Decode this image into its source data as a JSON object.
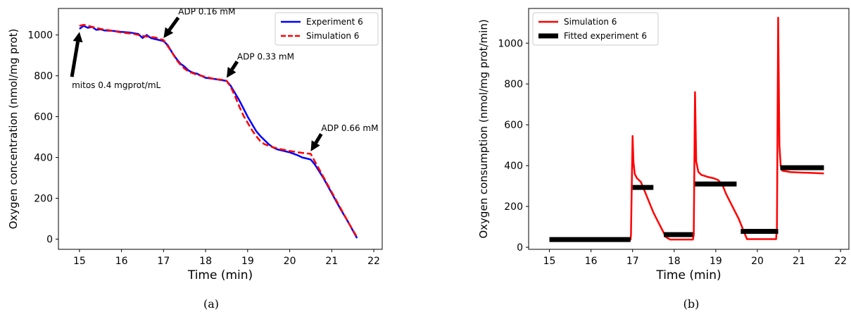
{
  "chart_data": [
    {
      "type": "line",
      "caption": "(a)",
      "xlabel": "Time (min)",
      "ylabel": "Oxygen concentration (nmol/mg prot)",
      "xlim": [
        14.5,
        22.2
      ],
      "ylim": [
        -50,
        1130
      ],
      "xticks": [
        15,
        16,
        17,
        18,
        19,
        20,
        21,
        22
      ],
      "yticks": [
        0,
        200,
        400,
        600,
        800,
        1000
      ],
      "legend_position": "top-right",
      "series": [
        {
          "name": "Experiment 6",
          "color": "#0000ff",
          "style": "solid",
          "points": [
            [
              15.0,
              1030
            ],
            [
              15.1,
              1045
            ],
            [
              15.2,
              1035
            ],
            [
              15.3,
              1040
            ],
            [
              15.4,
              1025
            ],
            [
              15.5,
              1028
            ],
            [
              15.6,
              1022
            ],
            [
              15.8,
              1020
            ],
            [
              16.0,
              1015
            ],
            [
              16.2,
              1012
            ],
            [
              16.4,
              1005
            ],
            [
              16.5,
              985
            ],
            [
              16.6,
              1000
            ],
            [
              16.7,
              985
            ],
            [
              16.8,
              980
            ],
            [
              16.9,
              975
            ],
            [
              17.0,
              970
            ],
            [
              17.1,
              950
            ],
            [
              17.2,
              915
            ],
            [
              17.3,
              885
            ],
            [
              17.4,
              860
            ],
            [
              17.5,
              845
            ],
            [
              17.6,
              825
            ],
            [
              17.7,
              815
            ],
            [
              17.8,
              810
            ],
            [
              18.0,
              790
            ],
            [
              18.2,
              785
            ],
            [
              18.4,
              778
            ],
            [
              18.5,
              775
            ],
            [
              18.6,
              750
            ],
            [
              18.7,
              715
            ],
            [
              18.8,
              680
            ],
            [
              18.9,
              640
            ],
            [
              19.0,
              600
            ],
            [
              19.1,
              565
            ],
            [
              19.2,
              530
            ],
            [
              19.3,
              505
            ],
            [
              19.4,
              485
            ],
            [
              19.5,
              465
            ],
            [
              19.6,
              450
            ],
            [
              19.7,
              440
            ],
            [
              19.8,
              435
            ],
            [
              19.9,
              430
            ],
            [
              20.0,
              425
            ],
            [
              20.2,
              410
            ],
            [
              20.3,
              400
            ],
            [
              20.4,
              395
            ],
            [
              20.5,
              390
            ],
            [
              20.6,
              365
            ],
            [
              20.8,
              300
            ],
            [
              21.0,
              225
            ],
            [
              21.2,
              150
            ],
            [
              21.4,
              80
            ],
            [
              21.6,
              5
            ]
          ]
        },
        {
          "name": "Simulation 6",
          "color": "#ff0000",
          "style": "dashed",
          "points": [
            [
              15.0,
              1045
            ],
            [
              15.1,
              1050
            ],
            [
              15.3,
              1040
            ],
            [
              15.5,
              1030
            ],
            [
              15.8,
              1020
            ],
            [
              16.0,
              1012
            ],
            [
              16.3,
              1005
            ],
            [
              16.5,
              995
            ],
            [
              16.8,
              988
            ],
            [
              17.0,
              975
            ],
            [
              17.1,
              945
            ],
            [
              17.2,
              915
            ],
            [
              17.3,
              880
            ],
            [
              17.4,
              855
            ],
            [
              17.5,
              835
            ],
            [
              17.6,
              820
            ],
            [
              17.8,
              805
            ],
            [
              18.0,
              795
            ],
            [
              18.2,
              785
            ],
            [
              18.4,
              780
            ],
            [
              18.5,
              775
            ],
            [
              18.6,
              745
            ],
            [
              18.7,
              700
            ],
            [
              18.8,
              650
            ],
            [
              18.9,
              605
            ],
            [
              19.0,
              570
            ],
            [
              19.1,
              535
            ],
            [
              19.2,
              505
            ],
            [
              19.3,
              480
            ],
            [
              19.4,
              465
            ],
            [
              19.6,
              450
            ],
            [
              19.8,
              440
            ],
            [
              20.0,
              432
            ],
            [
              20.2,
              425
            ],
            [
              20.4,
              420
            ],
            [
              20.5,
              418
            ],
            [
              20.6,
              380
            ],
            [
              20.8,
              305
            ],
            [
              21.0,
              230
            ],
            [
              21.2,
              155
            ],
            [
              21.4,
              80
            ],
            [
              21.6,
              10
            ]
          ]
        }
      ],
      "annotations": [
        {
          "text": "mitos 0.4 mgprot/mL",
          "x": 14.82,
          "y": 740,
          "arrow_from": [
            14.82,
            795
          ],
          "arrow_to": [
            15.0,
            1015
          ]
        },
        {
          "text": "ADP 0.16 mM",
          "x": 17.35,
          "y": 1100,
          "arrow_from": [
            17.35,
            1085
          ],
          "arrow_to": [
            17.0,
            985
          ]
        },
        {
          "text": "ADP 0.33 mM",
          "x": 18.75,
          "y": 880,
          "arrow_from": [
            18.75,
            870
          ],
          "arrow_to": [
            18.5,
            790
          ]
        },
        {
          "text": "ADP 0.66 mM",
          "x": 20.75,
          "y": 530,
          "arrow_from": [
            20.75,
            515
          ],
          "arrow_to": [
            20.5,
            430
          ]
        }
      ]
    },
    {
      "type": "line",
      "caption": "(b)",
      "xlabel": "Time (min)",
      "ylabel": "Oxygen consumption (nmol/mg prot/min)",
      "xlim": [
        14.5,
        22.2
      ],
      "ylim": [
        -10,
        1170
      ],
      "xticks": [
        15,
        16,
        17,
        18,
        19,
        20,
        21,
        22
      ],
      "yticks": [
        0,
        200,
        400,
        600,
        800,
        1000
      ],
      "legend_position": "top-left",
      "series": [
        {
          "name": "Simulation 6",
          "color": "#ff0000",
          "style": "solid",
          "points": [
            [
              15.0,
              38
            ],
            [
              16.95,
              38
            ],
            [
              16.96,
              60
            ],
            [
              17.0,
              545
            ],
            [
              17.02,
              420
            ],
            [
              17.05,
              360
            ],
            [
              17.1,
              340
            ],
            [
              17.2,
              320
            ],
            [
              17.3,
              270
            ],
            [
              17.4,
              220
            ],
            [
              17.5,
              170
            ],
            [
              17.6,
              130
            ],
            [
              17.7,
              90
            ],
            [
              17.8,
              50
            ],
            [
              17.9,
              38
            ],
            [
              18.45,
              38
            ],
            [
              18.47,
              60
            ],
            [
              18.5,
              760
            ],
            [
              18.53,
              420
            ],
            [
              18.58,
              370
            ],
            [
              18.65,
              355
            ],
            [
              18.8,
              345
            ],
            [
              18.95,
              338
            ],
            [
              19.05,
              330
            ],
            [
              19.15,
              310
            ],
            [
              19.25,
              260
            ],
            [
              19.4,
              200
            ],
            [
              19.55,
              140
            ],
            [
              19.65,
              90
            ],
            [
              19.75,
              40
            ],
            [
              20.45,
              40
            ],
            [
              20.47,
              100
            ],
            [
              20.5,
              1125
            ],
            [
              20.53,
              500
            ],
            [
              20.56,
              400
            ],
            [
              20.6,
              375
            ],
            [
              20.8,
              368
            ],
            [
              21.2,
              365
            ],
            [
              21.6,
              362
            ]
          ]
        },
        {
          "name": "Fitted experiment 6",
          "color": "#000000",
          "style": "segments",
          "segments": [
            {
              "x0": 15.0,
              "x1": 16.95,
              "y": 38
            },
            {
              "x0": 17.0,
              "x1": 17.5,
              "y": 293
            },
            {
              "x0": 17.75,
              "x1": 18.45,
              "y": 62
            },
            {
              "x0": 18.5,
              "x1": 19.5,
              "y": 310
            },
            {
              "x0": 19.6,
              "x1": 20.5,
              "y": 78
            },
            {
              "x0": 20.55,
              "x1": 21.6,
              "y": 390
            }
          ]
        }
      ],
      "annotations": []
    }
  ]
}
